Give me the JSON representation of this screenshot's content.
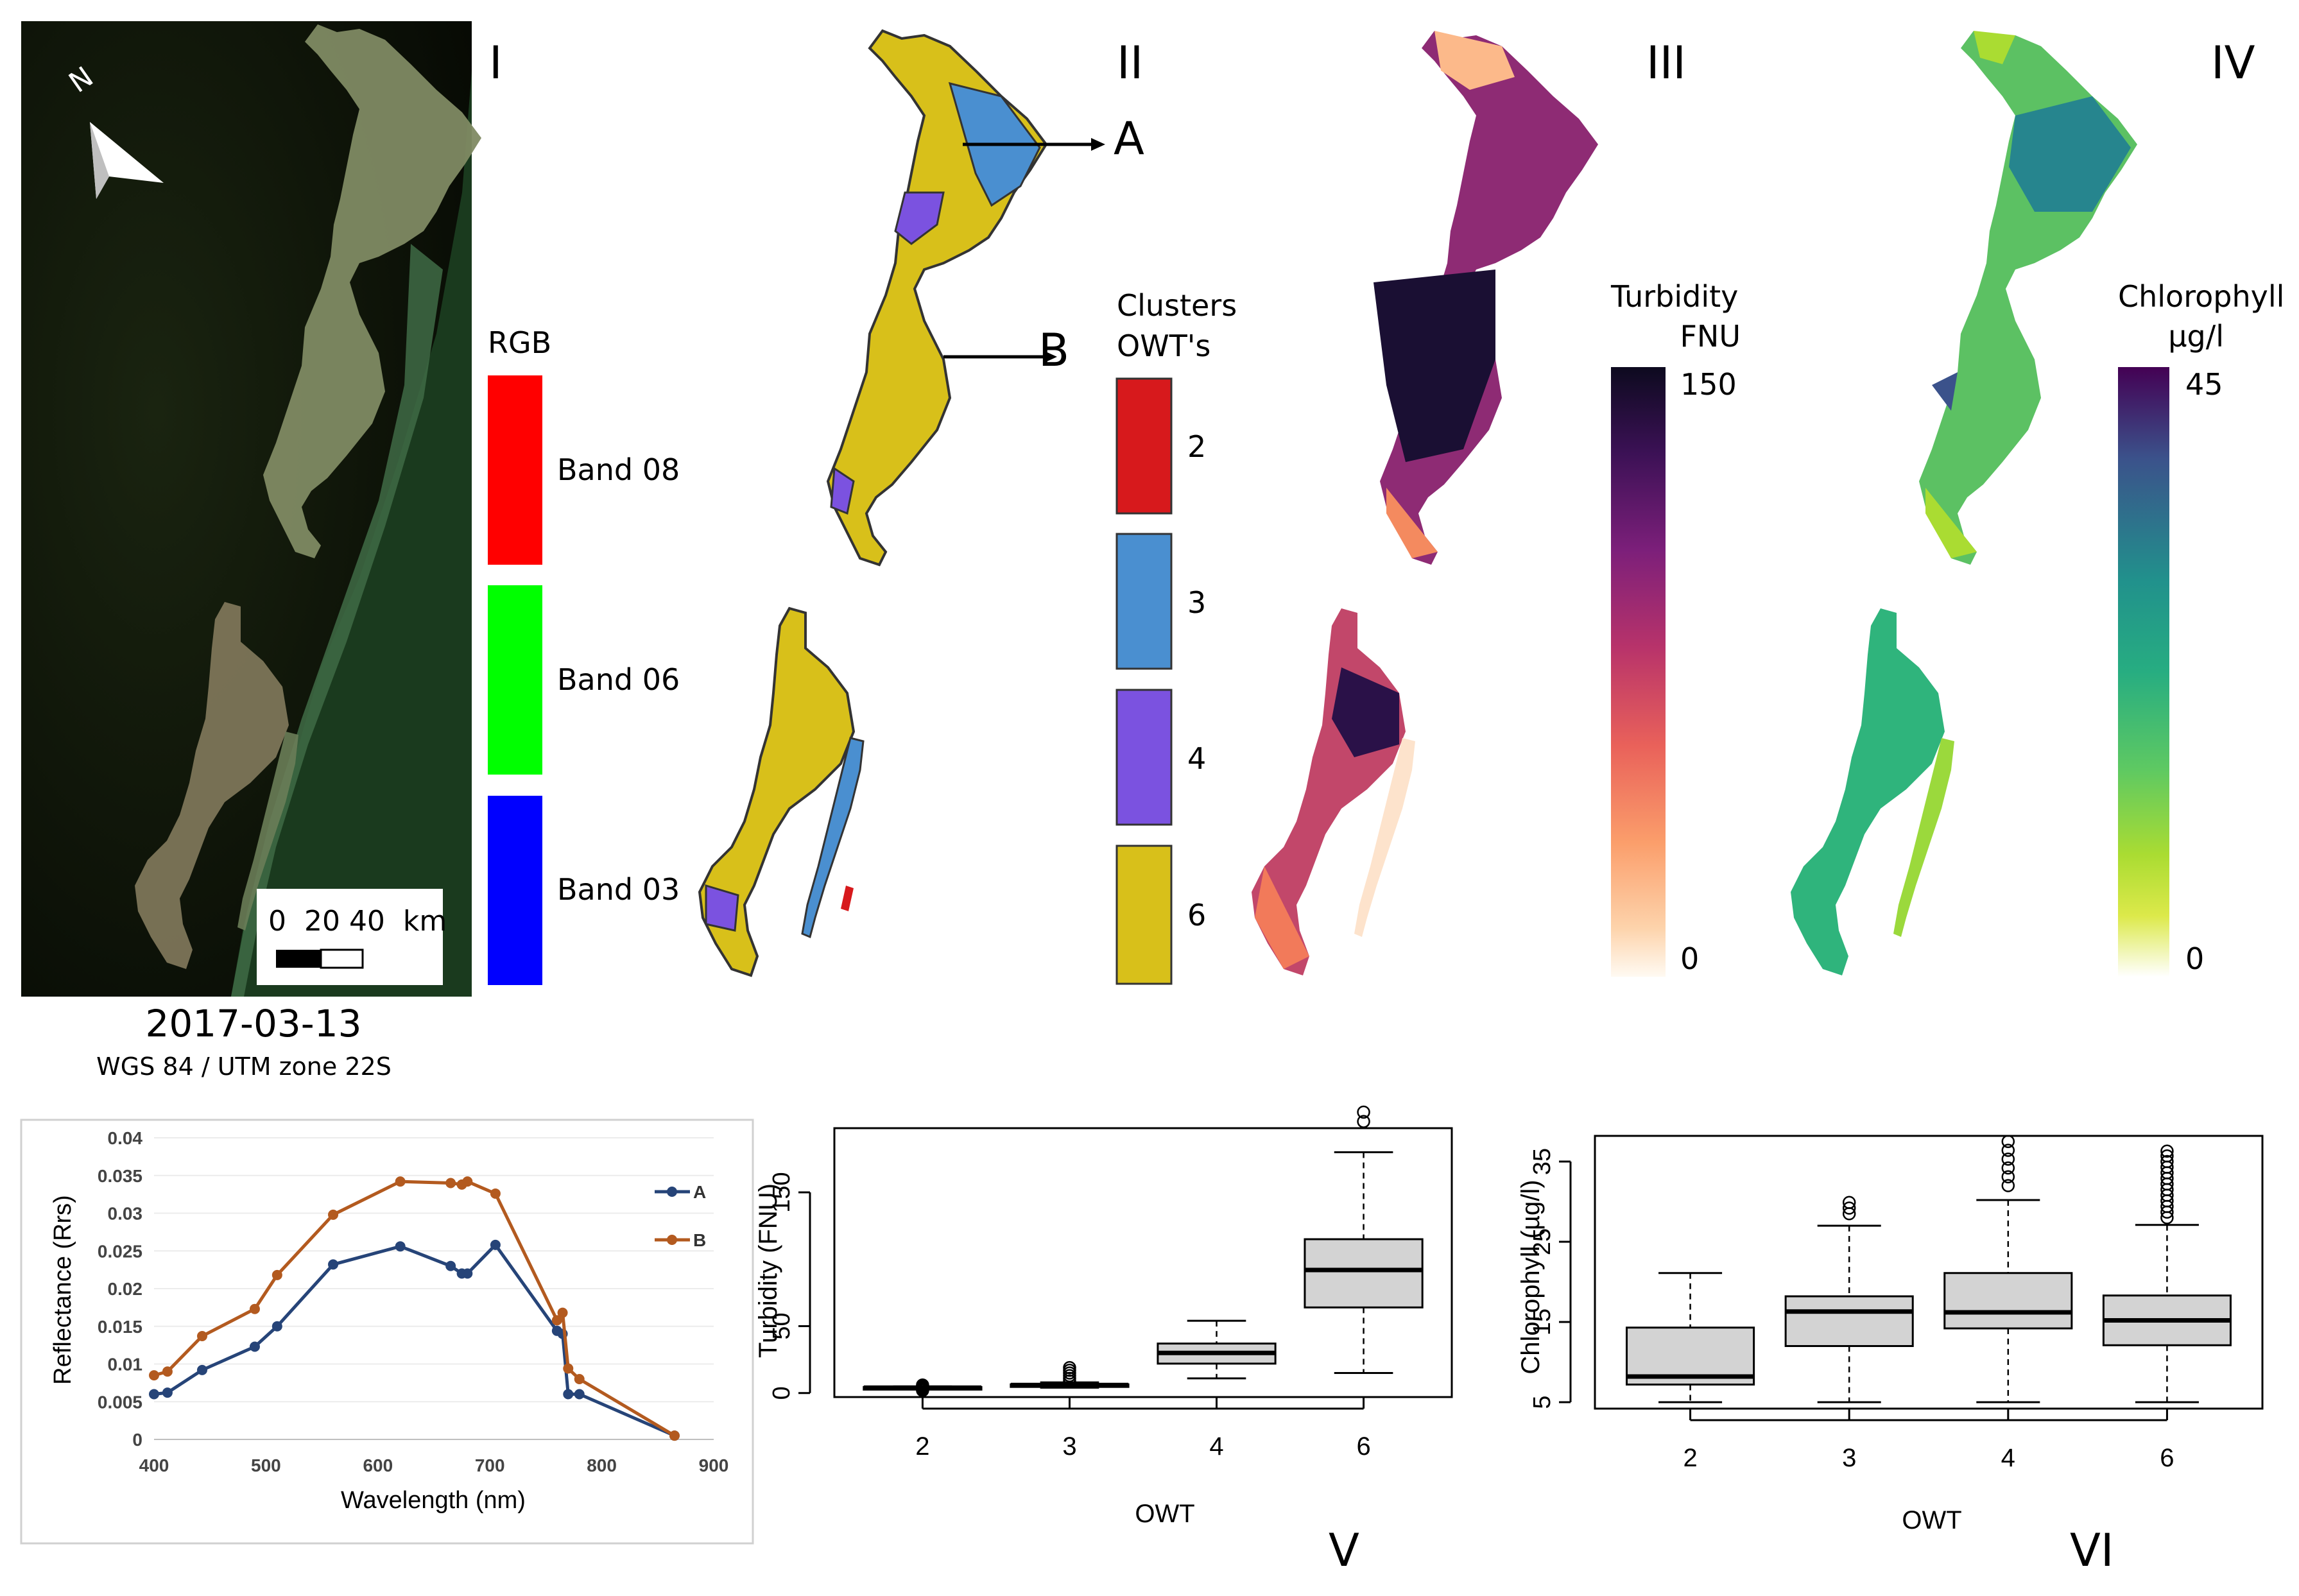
{
  "panels": {
    "rgb": {
      "label": "I",
      "date": "2017-03-13",
      "crs": "WGS 84 / UTM zone 22S",
      "north": "N",
      "scale_text": "0  20 40  km",
      "legend_title": "RGB",
      "bands": [
        {
          "label": "Band 08",
          "color": "#ff0000"
        },
        {
          "label": "Band 06",
          "color": "#00ff00"
        },
        {
          "label": "Band 03",
          "color": "#0000ff"
        }
      ]
    },
    "owt": {
      "label": "II",
      "point_a": "A",
      "point_b": "B",
      "legend_title_1": "Clusters",
      "legend_title_2": "OWT's",
      "classes": [
        {
          "label": "2",
          "color": "#d7191c"
        },
        {
          "label": "3",
          "color": "#4a8fd0"
        },
        {
          "label": "4",
          "color": "#7b52e0"
        },
        {
          "label": "6",
          "color": "#d8c01a"
        }
      ]
    },
    "turbidity": {
      "label": "III",
      "legend_title": "Turbidity",
      "unit": "FNU",
      "max": "150",
      "min": "0",
      "ramp": [
        "#0d0a1f",
        "#3b1155",
        "#7c1f7a",
        "#b8336a",
        "#e9615a",
        "#fb9e6b",
        "#fdd3ab",
        "#fffaf2"
      ]
    },
    "chlorophyll": {
      "label": "IV",
      "legend_title": "Chlorophyll",
      "unit": "µg/l",
      "max": "45",
      "min": "0",
      "ramp": [
        "#440154",
        "#3b528b",
        "#21918c",
        "#27ad81",
        "#5ec962",
        "#aadc32",
        "#fde725",
        "#ffffff"
      ]
    }
  },
  "chart_data": [
    {
      "type": "line",
      "xlabel": "Wavelength (nm)",
      "ylabel": "Reflectance (Rrs)",
      "xlim": [
        400,
        900
      ],
      "ylim": [
        0,
        0.04
      ],
      "x_ticks": [
        "400",
        "500",
        "600",
        "700",
        "800",
        "900"
      ],
      "y_ticks": [
        "0",
        "0.005",
        "0.01",
        "0.015",
        "0.02",
        "0.025",
        "0.03",
        "0.035",
        "0.04"
      ],
      "legend_position": "right",
      "series": [
        {
          "name": "A",
          "color": "#264478",
          "x": [
            400,
            412,
            443,
            490,
            510,
            560,
            620,
            665,
            675,
            680,
            705,
            760,
            765,
            770,
            780,
            865
          ],
          "y": [
            0.006,
            0.0062,
            0.0092,
            0.0123,
            0.015,
            0.0232,
            0.0256,
            0.023,
            0.022,
            0.022,
            0.0258,
            0.0144,
            0.014,
            0.006,
            0.006,
            0.0005
          ]
        },
        {
          "name": "B",
          "color": "#b35a1f",
          "x": [
            400,
            412,
            443,
            490,
            510,
            560,
            620,
            665,
            675,
            680,
            705,
            760,
            765,
            770,
            780,
            865
          ],
          "y": [
            0.0085,
            0.009,
            0.0137,
            0.0173,
            0.0218,
            0.0298,
            0.0342,
            0.034,
            0.0338,
            0.0342,
            0.0326,
            0.0158,
            0.0168,
            0.0094,
            0.008,
            0.0005
          ]
        }
      ]
    },
    {
      "type": "box",
      "label": "V",
      "xlabel": "OWT",
      "ylabel": "Turbidity (FNU)",
      "ylim": [
        -3,
        198
      ],
      "y_ticks": [
        0,
        50,
        150
      ],
      "categories": [
        "2",
        "3",
        "4",
        "6"
      ],
      "boxes": [
        {
          "whislo": 3,
          "q1": 3.5,
          "med": 4,
          "q3": 4.5,
          "whishi": 5,
          "fliers": [
            2,
            3,
            4,
            5,
            6
          ]
        },
        {
          "whislo": 4,
          "q1": 5,
          "med": 6,
          "q3": 6.5,
          "whishi": 8,
          "fliers": [
            9,
            11,
            13,
            15,
            17,
            19
          ]
        },
        {
          "whislo": 11,
          "q1": 22,
          "med": 30,
          "q3": 37,
          "whishi": 54,
          "fliers": []
        },
        {
          "whislo": 15,
          "q1": 64,
          "med": 92,
          "q3": 115,
          "whishi": 180,
          "fliers": [
            203,
            210
          ]
        }
      ]
    },
    {
      "type": "box",
      "label": "VI",
      "xlabel": "OWT",
      "ylabel": "Chlorophyll (µg/l)",
      "ylim": [
        4.2,
        38.2
      ],
      "y_ticks": [
        5,
        15,
        25,
        35
      ],
      "categories": [
        "2",
        "3",
        "4",
        "6"
      ],
      "boxes": [
        {
          "whislo": 5,
          "q1": 7.2,
          "med": 8.2,
          "q3": 14.3,
          "whishi": 21.1,
          "fliers": []
        },
        {
          "whislo": 5,
          "q1": 12,
          "med": 16.3,
          "q3": 18.2,
          "whishi": 27,
          "fliers": [
            28.5,
            29.2,
            29.9
          ]
        },
        {
          "whislo": 5,
          "q1": 14.2,
          "med": 16.2,
          "q3": 21.1,
          "whishi": 30.2,
          "fliers": [
            32,
            33.1,
            34.2,
            35.3,
            36.4,
            37.5
          ]
        },
        {
          "whislo": 5,
          "q1": 12.1,
          "med": 15.2,
          "q3": 18.3,
          "whishi": 27.1,
          "fliers": [
            28,
            28.7,
            29.4,
            30.1,
            30.8,
            31.5,
            32.2,
            32.9,
            33.6,
            34.3,
            35,
            35.7,
            36.3
          ]
        }
      ]
    }
  ]
}
